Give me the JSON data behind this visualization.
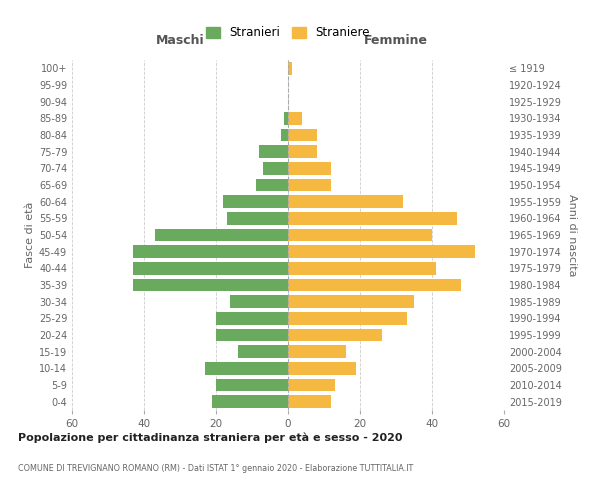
{
  "age_groups": [
    "0-4",
    "5-9",
    "10-14",
    "15-19",
    "20-24",
    "25-29",
    "30-34",
    "35-39",
    "40-44",
    "45-49",
    "50-54",
    "55-59",
    "60-64",
    "65-69",
    "70-74",
    "75-79",
    "80-84",
    "85-89",
    "90-94",
    "95-99",
    "100+"
  ],
  "birth_years": [
    "2015-2019",
    "2010-2014",
    "2005-2009",
    "2000-2004",
    "1995-1999",
    "1990-1994",
    "1985-1989",
    "1980-1984",
    "1975-1979",
    "1970-1974",
    "1965-1969",
    "1960-1964",
    "1955-1959",
    "1950-1954",
    "1945-1949",
    "1940-1944",
    "1935-1939",
    "1930-1934",
    "1925-1929",
    "1920-1924",
    "≤ 1919"
  ],
  "males": [
    21,
    20,
    23,
    14,
    20,
    20,
    16,
    43,
    43,
    43,
    37,
    17,
    18,
    9,
    7,
    8,
    2,
    1,
    0,
    0,
    0
  ],
  "females": [
    12,
    13,
    19,
    16,
    26,
    33,
    35,
    48,
    41,
    52,
    40,
    47,
    32,
    12,
    12,
    8,
    8,
    4,
    0,
    0,
    1
  ],
  "male_color": "#6aaa5e",
  "female_color": "#f5b942",
  "background_color": "#ffffff",
  "grid_color": "#cccccc",
  "title": "Popolazione per cittadinanza straniera per età e sesso - 2020",
  "subtitle": "COMUNE DI TREVIGNANO ROMANO (RM) - Dati ISTAT 1° gennaio 2020 - Elaborazione TUTTITALIA.IT",
  "xlabel_left": "Maschi",
  "xlabel_right": "Femmine",
  "ylabel_left": "Fasce di età",
  "ylabel_right": "Anni di nascita",
  "legend_male": "Stranieri",
  "legend_female": "Straniere",
  "xlim": 60,
  "bar_height": 0.75
}
